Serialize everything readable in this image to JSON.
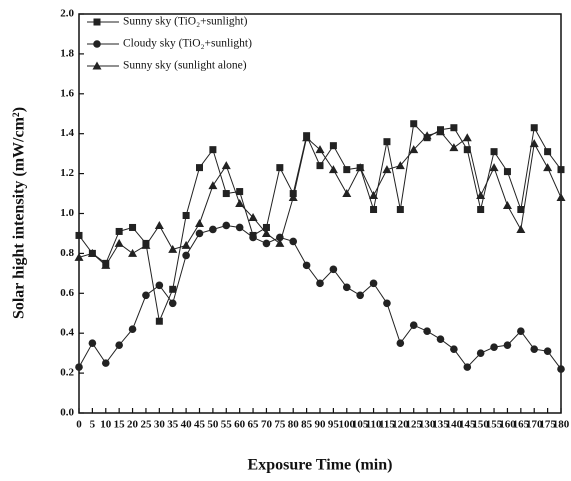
{
  "chart_data": {
    "type": "line",
    "x_label": "Exposure Time (min)",
    "y_label": "Solar hight intensity (mW/cm²)",
    "x": [
      0,
      5,
      10,
      15,
      20,
      25,
      30,
      35,
      40,
      45,
      50,
      55,
      60,
      65,
      70,
      75,
      80,
      85,
      90,
      95,
      100,
      105,
      110,
      115,
      120,
      125,
      130,
      135,
      140,
      145,
      150,
      155,
      160,
      165,
      170,
      175,
      180
    ],
    "series": [
      {
        "name": "Sunny sky (TiO₂+sunlight)",
        "color": "#222222",
        "marker": "square",
        "values": [
          0.89,
          0.8,
          0.75,
          0.91,
          0.93,
          0.85,
          0.46,
          0.62,
          0.99,
          1.23,
          1.32,
          1.1,
          1.11,
          0.89,
          0.93,
          1.23,
          1.1,
          1.39,
          1.24,
          1.34,
          1.22,
          1.23,
          1.02,
          1.36,
          1.02,
          1.45,
          1.38,
          1.42,
          1.43,
          1.32,
          1.02,
          1.31,
          1.21,
          1.02,
          1.43,
          1.31,
          1.22
        ]
      },
      {
        "name": "Cloudy sky (TiO₂+sunlight)",
        "color": "#222222",
        "marker": "circle",
        "values": [
          0.23,
          0.35,
          0.25,
          0.34,
          0.42,
          0.59,
          0.64,
          0.55,
          0.79,
          0.9,
          0.92,
          0.94,
          0.93,
          0.88,
          0.85,
          0.88,
          0.86,
          0.74,
          0.65,
          0.72,
          0.63,
          0.59,
          0.65,
          0.55,
          0.35,
          0.44,
          0.41,
          0.37,
          0.32,
          0.23,
          0.3,
          0.33,
          0.34,
          0.41,
          0.32,
          0.31,
          0.22
        ]
      },
      {
        "name": "Sunny sky (sunlight alone)",
        "color": "#222222",
        "marker": "triangle",
        "values": [
          0.78,
          0.8,
          0.74,
          0.85,
          0.8,
          0.84,
          0.94,
          0.82,
          0.84,
          0.95,
          1.14,
          1.24,
          1.05,
          0.98,
          0.9,
          0.85,
          1.08,
          1.38,
          1.32,
          1.22,
          1.1,
          1.23,
          1.09,
          1.22,
          1.24,
          1.32,
          1.39,
          1.41,
          1.33,
          1.38,
          1.09,
          1.23,
          1.04,
          0.92,
          1.35,
          1.23,
          1.08
        ]
      }
    ],
    "xlim": [
      0,
      180
    ],
    "xticks": [
      0,
      5,
      10,
      15,
      20,
      25,
      30,
      35,
      40,
      45,
      50,
      55,
      60,
      65,
      70,
      75,
      80,
      85,
      90,
      95,
      100,
      105,
      110,
      115,
      120,
      125,
      130,
      135,
      140,
      145,
      150,
      155,
      160,
      165,
      170,
      175,
      180
    ],
    "ylim": [
      0,
      2
    ],
    "yticks": [
      {
        "value": 0,
        "label": "0.0"
      },
      0.2,
      0.4,
      0.6,
      0.8,
      {
        "value": 1,
        "label": "1.0"
      },
      1.2,
      1.4,
      1.6,
      1.8,
      {
        "value": 2,
        "label": "2.0"
      }
    ],
    "legend": "upper left"
  }
}
